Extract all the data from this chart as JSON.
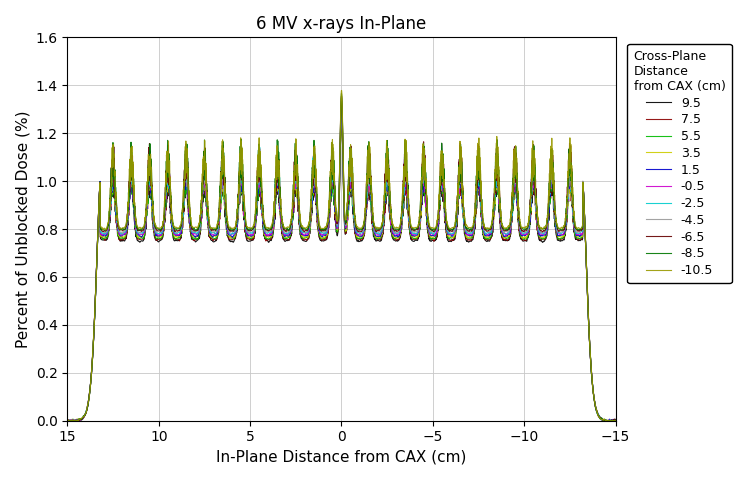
{
  "title": "6 MV x-rays In-Plane",
  "xlabel": "In-Plane Distance from CAX (cm)",
  "ylabel": "Percent of Unblocked Dose (%)",
  "xlim": [
    15,
    -15
  ],
  "ylim": [
    0.0,
    1.6
  ],
  "yticks": [
    0.0,
    0.2,
    0.4,
    0.6,
    0.8,
    1.0,
    1.2,
    1.4,
    1.6
  ],
  "xticks": [
    15,
    10,
    5,
    0,
    -5,
    -10,
    -15
  ],
  "legend_title": "Cross-Plane\nDistance\nfrom CAX (cm)",
  "series": [
    {
      "label": "9.5",
      "color": "#000000"
    },
    {
      "label": "7.5",
      "color": "#8B0000"
    },
    {
      "label": "5.5",
      "color": "#00BB00"
    },
    {
      "label": "3.5",
      "color": "#CCCC00"
    },
    {
      "label": "1.5",
      "color": "#0000CC"
    },
    {
      "label": "-0.5",
      "color": "#CC00CC"
    },
    {
      "label": "-2.5",
      "color": "#00CCCC"
    },
    {
      "label": "-4.5",
      "color": "#999999"
    },
    {
      "label": "-6.5",
      "color": "#660000"
    },
    {
      "label": "-8.5",
      "color": "#007700"
    },
    {
      "label": "-10.5",
      "color": "#999900"
    }
  ],
  "background_color": "#ffffff",
  "grid_color": "#c8c8c8",
  "linewidth": 0.8,
  "title_fontsize": 12,
  "label_fontsize": 11,
  "tick_fontsize": 10,
  "legend_fontsize": 9
}
